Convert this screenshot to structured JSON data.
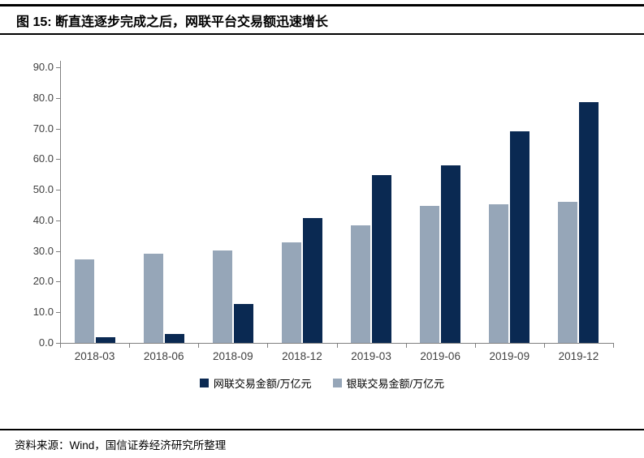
{
  "figure": {
    "title": "图 15: 断直连逐步完成之后，网联平台交易额迅速增长",
    "source": "资料来源：Wind，国信证券经济研究所整理"
  },
  "colors": {
    "netsunion_navy": "#0a2952",
    "unionpay_gray": "#96a6b8",
    "axis_gray": "#808080",
    "rule_black": "#000000",
    "tick_text": "#3f3f3f"
  },
  "chart_data": {
    "type": "bar",
    "title": "",
    "xlabel": "",
    "ylabel": "",
    "categories": [
      "2018-03",
      "2018-06",
      "2018-09",
      "2018-12",
      "2019-03",
      "2019-06",
      "2019-09",
      "2019-12"
    ],
    "series": [
      {
        "name": "网联交易金额/万亿元",
        "color": "#0a2952",
        "values": [
          1.8,
          2.8,
          12.7,
          40.7,
          54.7,
          57.9,
          69.0,
          78.6
        ]
      },
      {
        "name": "银联交易金额/万亿元",
        "color": "#96a6b8",
        "values": [
          27.2,
          29.2,
          30.3,
          32.7,
          38.3,
          44.7,
          45.2,
          46.0
        ]
      }
    ],
    "ylim": [
      0,
      90
    ],
    "ytick_step": 10,
    "ytick_labels": [
      "0.0",
      "10.0",
      "20.0",
      "30.0",
      "40.0",
      "50.0",
      "60.0",
      "70.0",
      "80.0",
      "90.0"
    ],
    "grid": false,
    "legend_position": "bottom-center",
    "legend_order": [
      "网联交易金额/万亿元",
      "银联交易金额/万亿元"
    ],
    "bar_pair_order": "银联(gray) bar on left, 网联(navy) bar on right within each category"
  }
}
